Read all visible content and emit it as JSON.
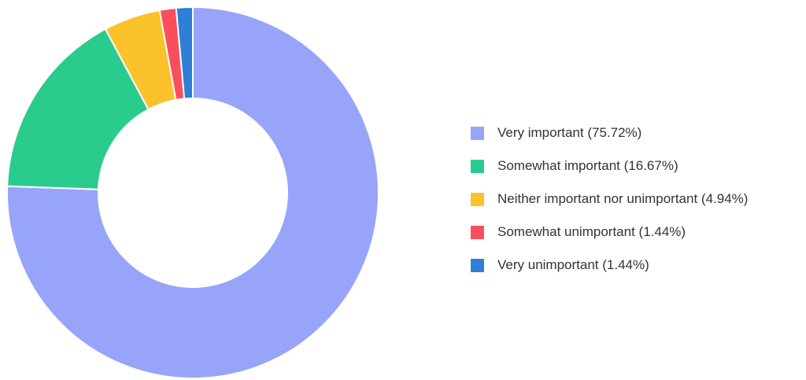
{
  "chart_data": {
    "type": "pie",
    "variant": "donut",
    "title": "",
    "slices": [
      {
        "label": "Very important (75.72%)",
        "value": 75.72,
        "color": "#97a4fa"
      },
      {
        "label": "Somewhat important (16.67%)",
        "value": 16.67,
        "color": "#2acc8d"
      },
      {
        "label": "Neither important nor unimportant (4.94%)",
        "value": 4.94,
        "color": "#fbc22c"
      },
      {
        "label": "Somewhat unimportant (1.44%)",
        "value": 1.44,
        "color": "#f94f5c"
      },
      {
        "label": "Very unimportant (1.44%)",
        "value": 1.44,
        "color": "#2f7fd6"
      }
    ],
    "legend_position": "right"
  }
}
